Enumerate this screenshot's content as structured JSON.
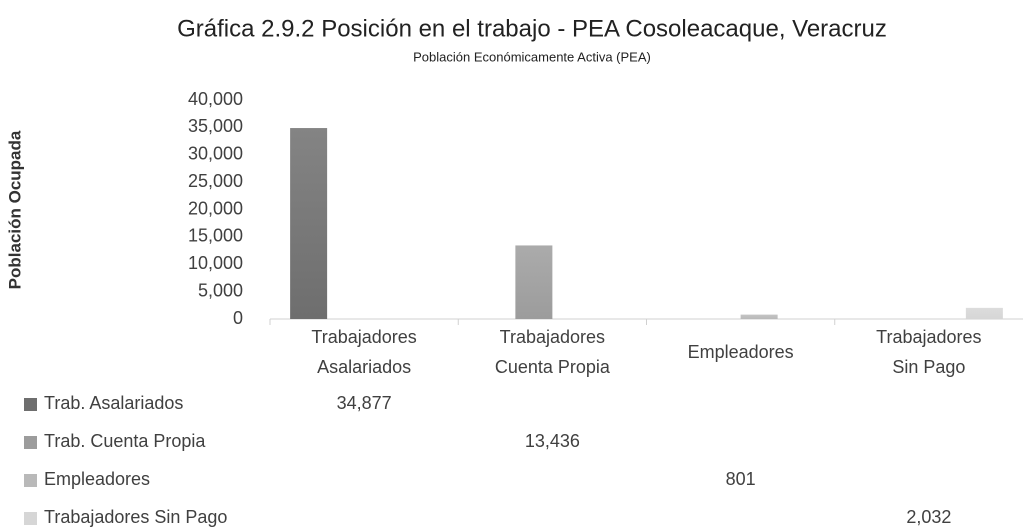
{
  "chart_data": {
    "type": "bar",
    "title": "Gráfica 2.9.2 Posición en el trabajo - PEA Cosoleacaque, Veracruz",
    "subtitle": "Población Económicamente Activa (PEA)",
    "y_label": "Población Ocupada",
    "categories": [
      [
        "Trabajadores",
        "Asalariados"
      ],
      [
        "Trabajadores",
        "Cuenta Propia"
      ],
      [
        "Empleadores"
      ],
      [
        "Trabajadores",
        "Sin Pago"
      ]
    ],
    "series": [
      {
        "name": "Trab. Asalariados",
        "color": "#6e6e6e",
        "values": [
          34877,
          null,
          null,
          null
        ],
        "value_labels": [
          "34,877",
          null,
          null,
          null
        ]
      },
      {
        "name": "Trab. Cuenta Propia",
        "color": "#9c9c9c",
        "values": [
          null,
          13436,
          null,
          null
        ],
        "value_labels": [
          null,
          "13,436",
          null,
          null
        ]
      },
      {
        "name": "Empleadores",
        "color": "#b9b9b9",
        "values": [
          null,
          null,
          801,
          null
        ],
        "value_labels": [
          null,
          null,
          "801",
          null
        ]
      },
      {
        "name": "Trabajadores Sin Pago",
        "color": "#d6d6d6",
        "values": [
          null,
          null,
          null,
          2032
        ],
        "value_labels": [
          null,
          null,
          null,
          "2,032"
        ]
      }
    ],
    "ylim": [
      0,
      40000
    ],
    "yticks": [
      0,
      {
        "value": 5000,
        "label": "5,000"
      },
      {
        "value": 10000,
        "label": "10,000"
      },
      {
        "value": 15000,
        "label": "15,000"
      },
      {
        "value": 20000,
        "label": "20,000"
      },
      {
        "value": 25000,
        "label": "25,000"
      },
      {
        "value": 30000,
        "label": "30,000"
      },
      {
        "value": 35000,
        "label": "35,000"
      },
      {
        "value": 40000,
        "label": "40,000"
      }
    ],
    "grid": false,
    "data_table": true
  }
}
